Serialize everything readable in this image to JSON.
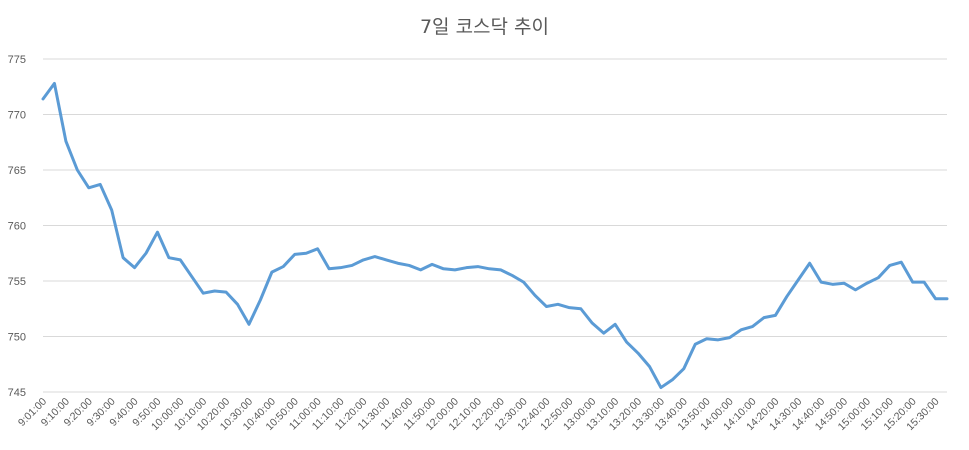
{
  "chart_data": {
    "type": "line",
    "title": "7일 코스닥 추이",
    "xlabel": "",
    "ylabel": "",
    "ylim": [
      745,
      775
    ],
    "yticks": [
      745,
      750,
      755,
      760,
      765,
      770,
      775
    ],
    "grid": true,
    "legend": "none",
    "line_color": "#5b9bd5",
    "x": [
      "9:01:00",
      "9:05:00",
      "9:10:00",
      "9:15:00",
      "9:20:00",
      "9:25:00",
      "9:30:00",
      "9:35:00",
      "9:40:00",
      "9:45:00",
      "9:50:00",
      "9:55:00",
      "10:00:00",
      "10:05:00",
      "10:10:00",
      "10:15:00",
      "10:20:00",
      "10:25:00",
      "10:30:00",
      "10:35:00",
      "10:40:00",
      "10:45:00",
      "10:50:00",
      "10:55:00",
      "11:00:00",
      "11:05:00",
      "11:10:00",
      "11:15:00",
      "11:20:00",
      "11:25:00",
      "11:30:00",
      "11:35:00",
      "11:40:00",
      "11:45:00",
      "11:50:00",
      "11:55:00",
      "12:00:00",
      "12:05:00",
      "12:10:00",
      "12:15:00",
      "12:20:00",
      "12:25:00",
      "12:30:00",
      "12:35:00",
      "12:40:00",
      "12:45:00",
      "12:50:00",
      "12:55:00",
      "13:00:00",
      "13:05:00",
      "13:10:00",
      "13:15:00",
      "13:20:00",
      "13:25:00",
      "13:30:00",
      "13:35:00",
      "13:40:00",
      "13:45:00",
      "13:50:00",
      "13:55:00",
      "14:00:00",
      "14:05:00",
      "14:10:00",
      "14:15:00",
      "14:20:00",
      "14:25:00",
      "14:30:00",
      "14:35:00",
      "14:40:00",
      "14:45:00",
      "14:50:00",
      "14:55:00",
      "15:00:00",
      "15:05:00",
      "15:10:00",
      "15:15:00",
      "15:20:00",
      "15:25:00",
      "15:30:00",
      "15:35:00"
    ],
    "labeled_x": [
      "9:01:00",
      "9:10:00",
      "9:20:00",
      "9:30:00",
      "9:40:00",
      "9:50:00",
      "10:00:00",
      "10:10:00",
      "10:20:00",
      "10:30:00",
      "10:40:00",
      "10:50:00",
      "11:00:00",
      "11:10:00",
      "11:20:00",
      "11:30:00",
      "11:40:00",
      "11:50:00",
      "12:00:00",
      "12:10:00",
      "12:20:00",
      "12:30:00",
      "12:40:00",
      "12:50:00",
      "13:00:00",
      "13:10:00",
      "13:20:00",
      "13:30:00",
      "13:40:00",
      "13:50:00",
      "14:00:00",
      "14:10:00",
      "14:20:00",
      "14:30:00",
      "14:40:00",
      "14:50:00",
      "15:00:00",
      "15:10:00",
      "15:20:00",
      "15:30:00"
    ],
    "series": [
      {
        "values": [
          771.4,
          772.8,
          767.6,
          765.0,
          763.4,
          763.7,
          761.4,
          757.1,
          756.2,
          757.5,
          759.4,
          757.1,
          756.9,
          755.4,
          753.9,
          754.1,
          754.0,
          752.9,
          751.1,
          753.3,
          755.8,
          756.3,
          757.4,
          757.5,
          757.9,
          756.1,
          756.2,
          756.4,
          756.9,
          757.2,
          756.9,
          756.6,
          756.4,
          756.0,
          756.5,
          756.1,
          756.0,
          756.2,
          756.3,
          756.1,
          756.0,
          755.5,
          754.9,
          753.7,
          752.7,
          752.9,
          752.6,
          752.5,
          751.2,
          750.3,
          751.1,
          749.5,
          748.5,
          747.3,
          745.4,
          746.1,
          747.1,
          749.3,
          749.8,
          749.7,
          749.9,
          750.6,
          750.9,
          751.7,
          751.9,
          753.6,
          755.1,
          756.6,
          754.9,
          754.7,
          754.8,
          754.2,
          754.8,
          755.3,
          756.4,
          756.7,
          754.9,
          754.9,
          753.4,
          753.4
        ]
      }
    ]
  }
}
